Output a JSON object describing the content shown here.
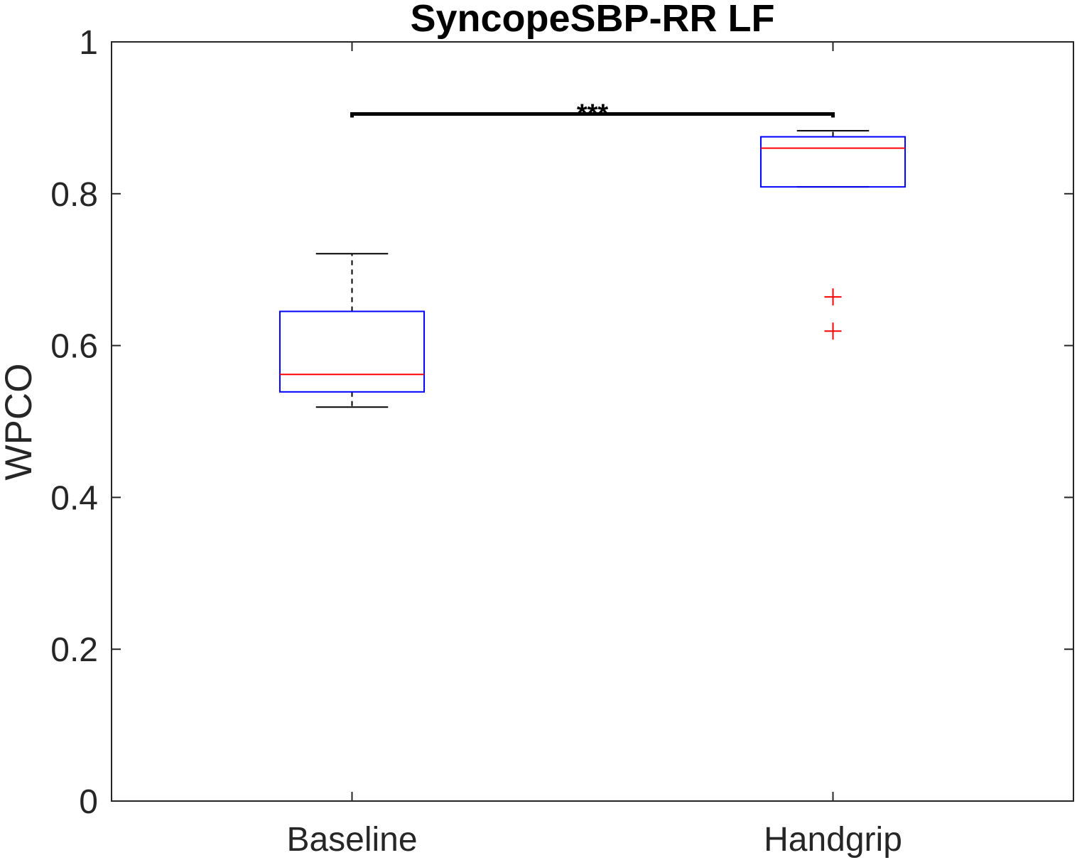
{
  "chart_data": {
    "type": "box",
    "title": "SyncopeSBP-RR LF",
    "ylabel": "WPCO",
    "categories": [
      "Baseline",
      "Handgrip"
    ],
    "xlim": [
      0.5,
      2.5
    ],
    "ylim": [
      0,
      1
    ],
    "yticks": [
      0,
      0.2,
      0.4,
      0.6,
      0.8,
      1
    ],
    "grid": false,
    "boxes": [
      {
        "whisker_low": 0.519,
        "q1": 0.539,
        "median": 0.562,
        "q3": 0.645,
        "whisker_high": 0.721,
        "outliers": []
      },
      {
        "whisker_low": 0.809,
        "q1": 0.809,
        "median": 0.86,
        "q3": 0.875,
        "whisker_high": 0.883,
        "outliers": [
          0.664,
          0.619
        ]
      }
    ],
    "significance": {
      "x": [
        1,
        2
      ],
      "y": 0.905,
      "label": "***"
    },
    "colors": {
      "box": "#0000ff",
      "median": "#ff0000",
      "whisker": "#000000",
      "outlier": "#ff0000",
      "axis": "#262626",
      "significance": "#000000"
    }
  }
}
